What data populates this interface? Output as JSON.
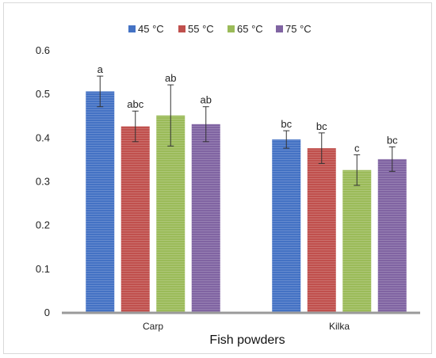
{
  "chart_data": {
    "type": "bar",
    "xlabel": "Fish powders",
    "ylabel": "",
    "ylim": [
      0,
      0.6
    ],
    "yticks": [
      "0",
      "0.1",
      "0.2",
      "0.3",
      "0.4",
      "0.5",
      "0.6"
    ],
    "grid": false,
    "legend_position": "top",
    "categories": [
      "Carp",
      "Kilka"
    ],
    "series": [
      {
        "name": "45 °C",
        "color": "#4472c4",
        "values": [
          0.505,
          0.395
        ],
        "errors": [
          0.035,
          0.02
        ],
        "labels": [
          "a",
          "bc"
        ]
      },
      {
        "name": "55 °C",
        "color": "#c0504d",
        "values": [
          0.425,
          0.375
        ],
        "errors": [
          0.035,
          0.035
        ],
        "labels": [
          "abc",
          "bc"
        ]
      },
      {
        "name": "65 °C",
        "color": "#9bbb59",
        "values": [
          0.45,
          0.325
        ],
        "errors": [
          0.07,
          0.035
        ],
        "labels": [
          "ab",
          "c"
        ]
      },
      {
        "name": "75 °C",
        "color": "#8064a2",
        "values": [
          0.43,
          0.35
        ],
        "errors": [
          0.04,
          0.028
        ],
        "labels": [
          "ab",
          "bc"
        ]
      }
    ]
  }
}
